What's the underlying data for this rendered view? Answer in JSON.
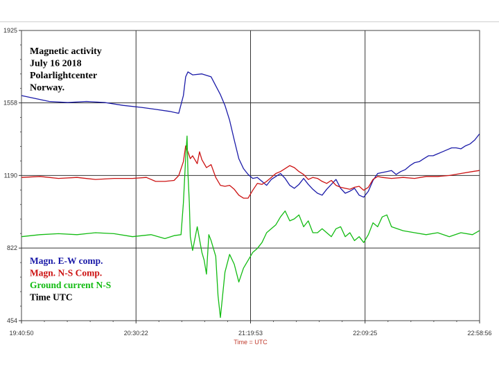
{
  "chart_data": {
    "type": "line",
    "title_lines": [
      "Magnetic activity",
      "July 16 2018",
      "Polarlightcenter",
      "Norway."
    ],
    "xlabel": "Time = UTC",
    "ylabel": "",
    "x_ticks": [
      "19:40:50",
      "20:30:22",
      "21:19:53",
      "22:09:25",
      "22:58:56"
    ],
    "y_ticks": [
      "454",
      "822",
      "1190",
      "1558",
      "1925"
    ],
    "xlim_minutes": [
      0,
      198.1
    ],
    "ylim": [
      454,
      1925
    ],
    "grid": true,
    "legend_position": "lower-left",
    "legend": [
      {
        "label": "Magn. E-W comp.",
        "color": "#1a1aa8"
      },
      {
        "label": "Magn. N-S Comp.",
        "color": "#cc1111"
      },
      {
        "label": "Ground current N-S",
        "color": "#11bb11"
      },
      {
        "label": "Time UTC",
        "color": "#000000"
      }
    ],
    "series": [
      {
        "name": "Magn. E-W comp.",
        "color": "#1a1aa8",
        "x": [
          0,
          6,
          12,
          20,
          28,
          36,
          44,
          52,
          58,
          64,
          68,
          70,
          71,
          72,
          74,
          78,
          82,
          84,
          86,
          88,
          90,
          92,
          94,
          96,
          98,
          100,
          102,
          104,
          106,
          108,
          110,
          112,
          114,
          116,
          118,
          120,
          122,
          124,
          126,
          128,
          130,
          132,
          134,
          136,
          138,
          140,
          142,
          144,
          146,
          148,
          150,
          152,
          154,
          156,
          158,
          160,
          162,
          164,
          166,
          168,
          170,
          172,
          174,
          176,
          178,
          180,
          182,
          184,
          186,
          188,
          190,
          192,
          194,
          196,
          198
        ],
        "y": [
          1595,
          1580,
          1565,
          1560,
          1565,
          1560,
          1545,
          1535,
          1525,
          1515,
          1505,
          1595,
          1690,
          1715,
          1700,
          1705,
          1690,
          1645,
          1600,
          1545,
          1470,
          1370,
          1275,
          1225,
          1195,
          1175,
          1180,
          1160,
          1140,
          1170,
          1185,
          1200,
          1175,
          1140,
          1125,
          1145,
          1175,
          1145,
          1120,
          1100,
          1090,
          1120,
          1145,
          1170,
          1125,
          1100,
          1110,
          1125,
          1090,
          1080,
          1110,
          1165,
          1200,
          1205,
          1210,
          1215,
          1195,
          1210,
          1220,
          1240,
          1255,
          1260,
          1275,
          1290,
          1290,
          1300,
          1310,
          1320,
          1330,
          1330,
          1325,
          1340,
          1350,
          1370,
          1400
        ]
      },
      {
        "name": "Magn. N-S Comp.",
        "color": "#cc1111",
        "x": [
          0,
          8,
          16,
          24,
          32,
          40,
          48,
          54,
          58,
          62,
          66,
          68,
          70,
          71,
          72,
          73,
          74,
          76,
          77,
          78,
          80,
          82,
          84,
          86,
          88,
          90,
          92,
          94,
          96,
          98,
          100,
          102,
          104,
          106,
          108,
          110,
          112,
          114,
          116,
          118,
          120,
          122,
          124,
          126,
          128,
          130,
          132,
          134,
          136,
          138,
          140,
          142,
          144,
          146,
          148,
          150,
          152,
          154,
          156,
          160,
          165,
          170,
          175,
          180,
          185,
          190,
          195,
          198
        ],
        "y": [
          1180,
          1185,
          1175,
          1180,
          1170,
          1175,
          1175,
          1180,
          1160,
          1160,
          1165,
          1190,
          1260,
          1340,
          1310,
          1275,
          1290,
          1250,
          1310,
          1270,
          1230,
          1245,
          1180,
          1140,
          1135,
          1140,
          1120,
          1090,
          1075,
          1075,
          1115,
          1150,
          1145,
          1160,
          1180,
          1200,
          1210,
          1225,
          1240,
          1230,
          1210,
          1195,
          1170,
          1180,
          1175,
          1160,
          1150,
          1165,
          1140,
          1130,
          1125,
          1120,
          1130,
          1135,
          1115,
          1130,
          1170,
          1185,
          1180,
          1175,
          1180,
          1175,
          1185,
          1185,
          1190,
          1200,
          1210,
          1215
        ]
      },
      {
        "name": "Ground current N-S",
        "color": "#11bb11",
        "x": [
          0,
          8,
          16,
          24,
          32,
          40,
          48,
          56,
          62,
          66,
          69,
          70,
          71,
          71.6,
          72,
          72.6,
          73,
          74,
          76,
          78,
          79,
          80,
          81,
          82,
          84,
          85,
          86,
          88,
          90,
          92,
          94,
          96,
          98,
          100,
          102,
          104,
          106,
          108,
          110,
          112,
          114,
          116,
          118,
          120,
          122,
          124,
          126,
          128,
          130,
          132,
          134,
          136,
          138,
          140,
          142,
          144,
          146,
          148,
          150,
          152,
          154,
          156,
          158,
          160,
          165,
          170,
          175,
          180,
          185,
          190,
          195,
          198
        ],
        "y": [
          880,
          890,
          895,
          890,
          900,
          895,
          880,
          890,
          870,
          885,
          890,
          1050,
          1280,
          1390,
          1200,
          1050,
          880,
          810,
          930,
          800,
          760,
          690,
          890,
          860,
          780,
          580,
          470,
          700,
          790,
          740,
          650,
          720,
          760,
          800,
          820,
          850,
          900,
          920,
          940,
          980,
          1010,
          960,
          970,
          990,
          930,
          960,
          900,
          900,
          920,
          900,
          880,
          920,
          930,
          880,
          900,
          860,
          880,
          850,
          890,
          950,
          930,
          980,
          990,
          930,
          910,
          900,
          890,
          900,
          880,
          900,
          890,
          910
        ]
      }
    ]
  }
}
